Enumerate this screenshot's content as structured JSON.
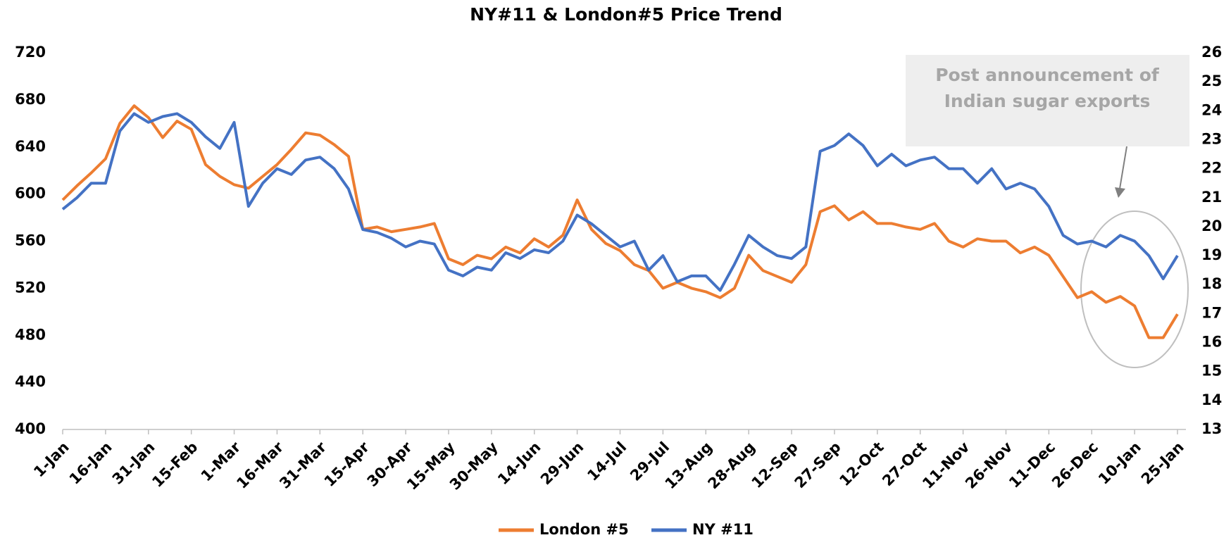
{
  "chart_data": {
    "type": "line",
    "title": "NY#11 & London#5 Price Trend",
    "categories": [
      "1-Jan",
      null,
      null,
      "16-Jan",
      null,
      null,
      "31-Jan",
      null,
      null,
      "15-Feb",
      null,
      null,
      "1-Mar",
      null,
      null,
      "16-Mar",
      null,
      null,
      "31-Mar",
      null,
      null,
      "15-Apr",
      null,
      null,
      "30-Apr",
      null,
      null,
      "15-May",
      null,
      null,
      "30-May",
      null,
      null,
      "14-Jun",
      null,
      null,
      "29-Jun",
      null,
      null,
      "14-Jul",
      null,
      null,
      "29-Jul",
      null,
      null,
      "13-Aug",
      null,
      null,
      "28-Aug",
      null,
      null,
      "12-Sep",
      null,
      null,
      "27-Sep",
      null,
      null,
      "12-Oct",
      null,
      null,
      "27-Oct",
      null,
      null,
      "11-Nov",
      null,
      null,
      "26-Nov",
      null,
      null,
      "11-Dec",
      null,
      null,
      "26-Dec",
      null,
      null,
      "10-Jan",
      null,
      null,
      "25-Jan"
    ],
    "series": [
      {
        "name": "London #5",
        "color": "#ed7d31",
        "axis": "y",
        "values": [
          595,
          607,
          618,
          630,
          660,
          675,
          665,
          648,
          662,
          655,
          625,
          615,
          608,
          605,
          615,
          625,
          638,
          652,
          650,
          642,
          632,
          570,
          572,
          568,
          570,
          572,
          575,
          545,
          540,
          548,
          545,
          555,
          550,
          562,
          555,
          565,
          595,
          570,
          558,
          552,
          540,
          535,
          520,
          525,
          520,
          517,
          512,
          520,
          548,
          535,
          530,
          525,
          540,
          585,
          590,
          578,
          585,
          575,
          575,
          572,
          570,
          575,
          560,
          555,
          562,
          560,
          560,
          550,
          555,
          548,
          530,
          512,
          517,
          508,
          513,
          505,
          478,
          478,
          498
        ]
      },
      {
        "name": "NY #11",
        "color": "#4472c4",
        "axis": "y2",
        "values": [
          20.6,
          21.0,
          21.5,
          21.5,
          23.3,
          23.9,
          23.6,
          23.8,
          23.9,
          23.6,
          23.1,
          22.7,
          23.6,
          20.7,
          21.5,
          22.0,
          21.8,
          22.3,
          22.4,
          22.0,
          21.3,
          19.9,
          19.8,
          19.6,
          19.3,
          19.5,
          19.4,
          18.5,
          18.3,
          18.6,
          18.5,
          19.1,
          18.9,
          19.2,
          19.1,
          19.5,
          20.4,
          20.1,
          19.7,
          19.3,
          19.5,
          18.5,
          19.0,
          18.1,
          18.3,
          18.3,
          17.8,
          18.7,
          19.7,
          19.3,
          19.0,
          18.9,
          19.3,
          22.6,
          22.8,
          23.2,
          22.8,
          22.1,
          22.5,
          22.1,
          22.3,
          22.4,
          22.0,
          22.0,
          21.5,
          22.0,
          21.3,
          21.5,
          21.3,
          20.7,
          19.7,
          19.4,
          19.5,
          19.3,
          19.7,
          19.5,
          19.0,
          18.2,
          19.0
        ]
      }
    ],
    "ylim": [
      400,
      720
    ],
    "yticks": [
      400,
      440,
      480,
      520,
      560,
      600,
      640,
      680,
      720
    ],
    "y2lim": [
      13,
      26
    ],
    "y2ticks": [
      13,
      14,
      15,
      16,
      17,
      18,
      19,
      20,
      21,
      22,
      23,
      24,
      25,
      26
    ],
    "grid": false,
    "legend": "bottom",
    "annotation": [
      "Post announcement of",
      "Indian sugar exports"
    ]
  }
}
